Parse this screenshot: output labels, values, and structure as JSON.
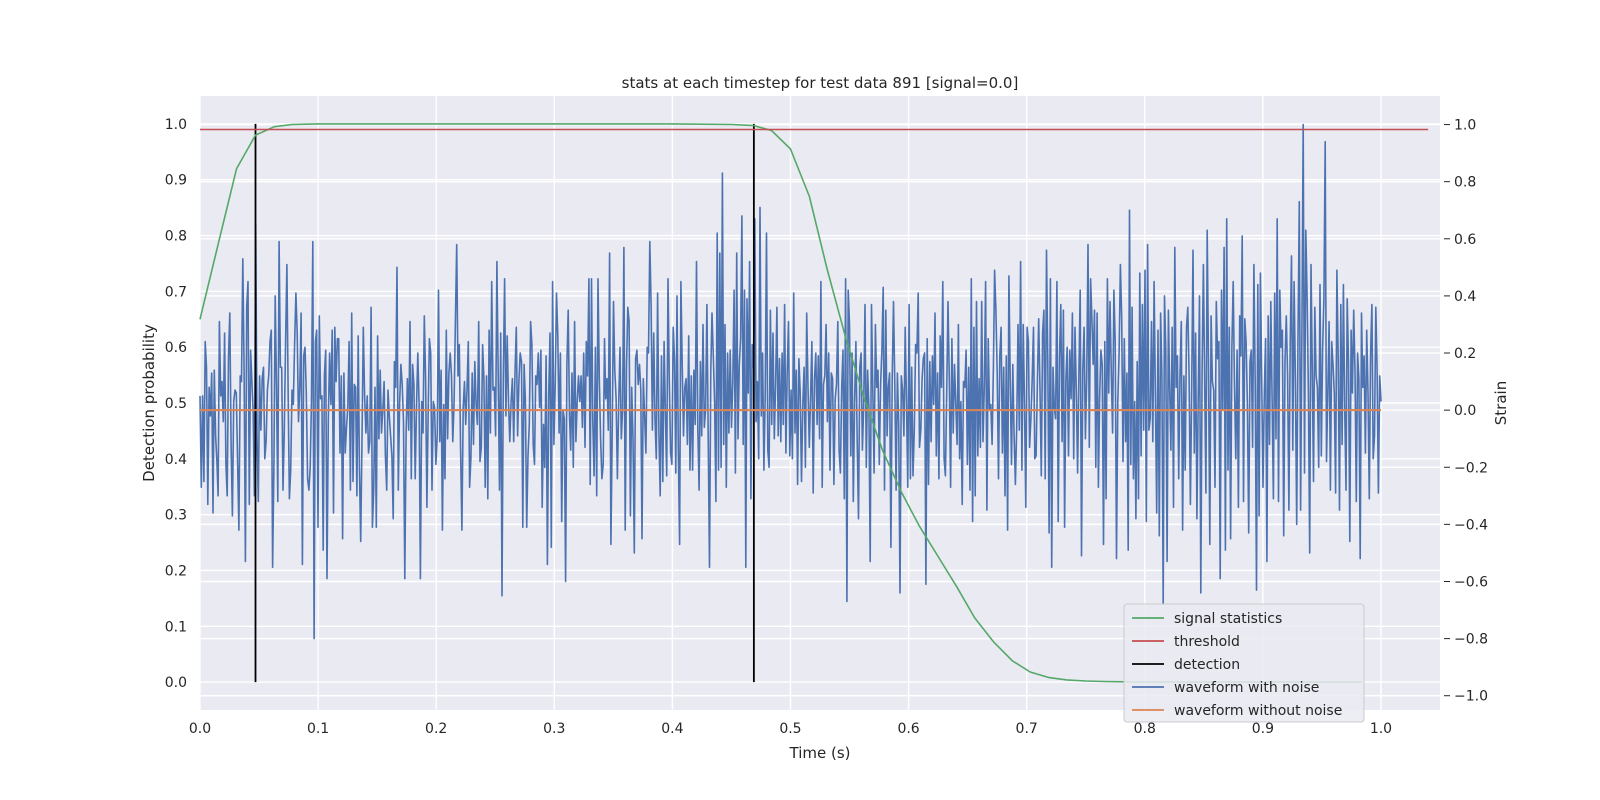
{
  "chart_data": {
    "type": "line",
    "title": "stats at each timestep for test data 891 [signal=0.0]",
    "xlabel": "Time (s)",
    "ylabel": "Detection probability",
    "ylabel_right": "Strain",
    "xlim": [
      0.0,
      1.05
    ],
    "ylim": [
      -0.05,
      1.05
    ],
    "ylim_right": [
      -1.05,
      1.1
    ],
    "x_ticks": [
      "0.0",
      "0.1",
      "0.2",
      "0.3",
      "0.4",
      "0.5",
      "0.6",
      "0.7",
      "0.8",
      "0.9",
      "1.0"
    ],
    "y_ticks": [
      "0.0",
      "0.1",
      "0.2",
      "0.3",
      "0.4",
      "0.5",
      "0.6",
      "0.7",
      "0.8",
      "0.9",
      "1.0"
    ],
    "y_right_ticks": [
      "−1.0",
      "−0.8",
      "−0.6",
      "−0.4",
      "−0.2",
      "0.0",
      "0.2",
      "0.4",
      "0.6",
      "0.8",
      "1.0"
    ],
    "grid": true,
    "legend_position": "lower-right",
    "series": [
      {
        "name": "signal statistics",
        "color": "#55a868",
        "axis": "left",
        "x": [
          0.0,
          0.016,
          0.031,
          0.047,
          0.063,
          0.078,
          0.1,
          0.2,
          0.3,
          0.4,
          0.45,
          0.469,
          0.484,
          0.5,
          0.516,
          0.531,
          0.547,
          0.563,
          0.578,
          0.594,
          0.609,
          0.625,
          0.641,
          0.656,
          0.672,
          0.688,
          0.703,
          0.719,
          0.734,
          0.75,
          0.766,
          0.8,
          0.85,
          0.9,
          0.95,
          0.984
        ],
        "y": [
          0.65,
          0.79,
          0.92,
          0.98,
          0.995,
          0.999,
          1.0,
          1.0,
          1.0,
          1.0,
          0.999,
          0.997,
          0.988,
          0.955,
          0.87,
          0.74,
          0.615,
          0.505,
          0.415,
          0.34,
          0.28,
          0.225,
          0.17,
          0.115,
          0.072,
          0.038,
          0.018,
          0.008,
          0.004,
          0.002,
          0.001,
          0.0,
          0.0,
          0.0,
          0.0,
          0.0
        ]
      },
      {
        "name": "threshold",
        "color": "#c44e52",
        "axis": "left",
        "x": [
          0.0,
          1.04
        ],
        "y": [
          0.99,
          0.99
        ]
      },
      {
        "name": "detection",
        "color": "#000000",
        "axis": "left",
        "segments": [
          {
            "x": 0.047,
            "y0": 0.0,
            "y1": 1.0
          },
          {
            "x": 0.469,
            "y0": 0.0,
            "y1": 1.0
          }
        ]
      },
      {
        "name": "waveform with noise",
        "color": "#4c72b0",
        "axis": "right",
        "x_start": 0.0,
        "x_end": 1.0,
        "y": [
          0.05,
          -0.27,
          0.05,
          -0.25,
          0.24,
          0.15,
          -0.33,
          0.08,
          -0.02,
          0.13,
          -0.36,
          0.14,
          -0.09,
          -0.18,
          -0.3,
          0.31,
          0.05,
          0.1,
          -0.04,
          0.27,
          -0.19,
          -0.3,
          0.19,
          0.34,
          -0.12,
          -0.37,
          0.03,
          0.07,
          0.06,
          -0.18,
          -0.42,
          0.12,
          0.1,
          0.53,
          0.14,
          -0.53,
          0.36,
          0.45,
          -0.33,
          0.21,
          0.1,
          0.0,
          -0.3,
          0.65,
          -0.09,
          -0.32,
          0.12,
          -0.07,
          0.11,
          0.15,
          -0.17,
          -0.11,
          0.07,
          0.12,
          0.24,
          0.28,
          -0.55,
          -0.2,
          0.4,
          0.08,
          -0.32,
          0.59,
          0.15,
          0.15,
          -0.28,
          -0.07,
          0.24,
          0.51,
          0.04,
          -0.31,
          -0.21,
          0.07,
          0.02,
          0.23,
          0.41,
          0.27,
          -0.04,
          0.08,
          0.34,
          -0.54,
          0.19,
          0.22,
          0.06,
          -0.24,
          -0.28,
          -0.2,
          0.04,
          0.59,
          -0.8,
          0.24,
          0.28,
          -0.41,
          0.33,
          0.04,
          0.05,
          -0.49,
          0.12,
          0.21,
          -0.59,
          -0.04,
          0.2,
          0.02,
          0.28,
          -0.36,
          0.29,
          0.1,
          0.25,
          0.25,
          -0.15,
          0.12,
          -0.45,
          0.13,
          -0.15,
          -0.06,
          0.01,
          0.24,
          -0.28,
          0.34,
          -0.25,
          0.09,
          0.08,
          -0.3,
          0.26,
          -0.2,
          -0.46,
          -0.1,
          0.29,
          0.05,
          -0.08,
          0.05,
          -0.15,
          -0.11,
          0.36,
          -0.41,
          -0.28,
          0.08,
          -0.41,
          0.26,
          -0.1,
          0.14,
          -0.08,
          0.0,
          0.1,
          -0.16,
          -0.28,
          0.07,
          -0.02,
          -0.09,
          -0.16,
          -0.38,
          0.17,
          0.08,
          0.5,
          -0.28,
          0.02,
          0.16,
          0.09,
          -0.04,
          -0.59,
          -0.08,
          0.11,
          -0.07,
          0.31,
          -0.24,
          0.16,
          0.09,
          -0.24,
          0.01,
          0.2,
          0.02,
          -0.59,
          0.03,
          -0.08,
          0.33,
          0.11,
          -0.34,
          0.0,
          0.25,
          0.2,
          -0.28,
          0.03,
          0.01,
          -0.19,
          -0.09,
          0.42,
          -0.11,
          0.14,
          -0.42,
          0.02,
          -0.24,
          0.28,
          -0.1,
          0.13,
          0.2,
          0.12,
          -0.11,
          0.03,
          0.31,
          0.58,
          0.12,
          0.23,
          -0.14,
          -0.42,
          0.01,
          0.1,
          -0.05,
          0.07,
          0.24,
          -0.27,
          -0.17,
          0.13,
          -0.12,
          0.17,
          0.02,
          -0.05,
          0.31,
          -0.18,
          -0.13,
          0.23,
          0.11,
          -0.27,
          0.12,
          -0.31,
          0.28,
          -0.08,
          0.45,
          0.07,
          0.08,
          -0.09,
          0.52,
          0.12,
          -0.28,
          0.27,
          -0.65,
          0.11,
          0.46,
          -0.02,
          0.26,
          0.03,
          -0.11,
          0.03,
          0.11,
          -0.11,
          0.13,
          0.29,
          -0.09,
          0.1,
          0.2,
          0.17,
          -0.41,
          0.16,
          0.03,
          -0.41,
          -0.16,
          -0.05,
          0.31,
          0.23,
          -0.12,
          -0.19,
          0.12,
          0.09,
          0.2,
          0.01,
          0.21,
          -0.34,
          -0.05,
          -0.2,
          0.19,
          -0.54,
          0.05,
          0.27,
          -0.48,
          0.45,
          -0.12,
          0.09,
          0.41,
          0.26,
          -0.08,
          0.2,
          -0.39,
          0.0,
          -0.03,
          -0.6,
          0.16,
          0.35,
          -0.02,
          -0.14,
          0.13,
          -0.2,
          0.31,
          -0.11,
          0.03,
          0.12,
          0.03,
          0.12,
          -0.06,
          0.2,
          -0.13,
          0.24,
          0.12,
          0.46,
          -0.26,
          0.46,
          -0.04,
          -0.23,
          0.22,
          -0.3,
          0.46,
          0.11,
          -0.1,
          -0.24,
          -0.19,
          0.25,
          0.04,
          0.11,
          -0.07,
          0.55,
          -0.47,
          -0.08,
          0.38,
          0.14,
          0.04,
          -0.24,
          0.02,
          0.22,
          -0.1,
          0.0,
          0.57,
          -0.42,
          0.15,
          0.36,
          0.31,
          -0.37,
          0.08,
          -0.1,
          -0.5,
          0.18,
          0.21,
          0.09,
          0.16,
          0.07,
          -0.45,
          0.11,
          -0.02,
          -0.15,
          0.22,
          0.2,
          0.59,
          0.37,
          -0.07,
          0.27,
          -0.03,
          -0.17,
          0.41,
          -0.08,
          -0.3,
          0.19,
          -0.25,
          0.24,
          -0.01,
          -0.23,
          0.46,
          0.1,
          -0.15,
          -0.19,
          0.29,
          0.18,
          -0.22,
          0.4,
          -0.13,
          -0.47,
          0.45,
          0.16,
          -0.09,
          0.08,
          0.11,
          -0.12,
          0.26,
          -0.21,
          0.12,
          -0.21,
          0.14,
          -0.05,
          0.52,
          -0.06,
          -0.28,
          0.17,
          -0.09,
          0.3,
          -0.06,
          0.0,
          0.37,
          -0.09,
          -0.55,
          0.14,
          0.34,
          0.19,
          0.03,
          -0.32,
          0.62,
          -0.21,
          0.55,
          -0.2,
          0.83,
          -0.12,
          0.3,
          -0.27,
          0.2,
          -0.08,
          0.21,
          -0.06,
          0.1,
          0.42,
          -0.22,
          0.55,
          -0.1,
          0.16,
          0.25,
          0.68,
          -0.12,
          0.42,
          -0.55,
          0.39,
          0.06,
          0.52,
          -0.31,
          0.23,
          0.15,
          0.67,
          -0.04,
          0.1,
          -0.17,
          0.71,
          -0.02,
          0.2,
          -0.21,
          0.05,
          0.62,
          -0.14,
          -0.2,
          0.35,
          -0.05,
          0.27,
          -0.1,
          0.09,
          0.36,
          -0.09,
          0.18,
          -0.11,
          0.2,
          -0.05,
          0.37,
          -0.15,
          0.13,
          0.31,
          -0.16,
          0.07,
          -0.17,
          0.41,
          -0.08,
          0.14,
          -0.26,
          0.18,
          0.06,
          -0.25,
          0.02,
          0.15,
          -0.2,
          0.34,
          0.08,
          -0.13,
          0.05,
          0.24,
          -0.29,
          0.11,
          0.2,
          -0.05,
          0.19,
          -0.1,
          0.45,
          -0.27,
          0.09,
          0.12,
          0.3,
          -0.04,
          0.2,
          -0.21,
          0.13,
          0.11,
          -0.26,
          0.04,
          0.09,
          0.31,
          -0.14,
          -0.22,
          0.08,
          0.21,
          -0.31,
          0.46,
          -0.67,
          0.42,
          0.3,
          -0.16,
          0.2,
          -0.32,
          0.03,
          0.24,
          -0.11,
          -0.38,
          0.15,
          0.2,
          -0.14,
          0.02,
          0.37,
          -0.2,
          0.14,
          0.01,
          -0.53,
          0.37,
          0.07,
          -0.22,
          0.3,
          0.08,
          0.14,
          -0.19,
          0.09,
          0.21,
          0.43,
          -0.28,
          0.35,
          -0.09,
          0.08,
          0.13,
          -0.48,
          0.11,
          0.38,
          0.09,
          -0.28,
          0.13,
          -0.05,
          -0.64,
          0.12,
          0.07,
          -0.09,
          0.29,
          0.02,
          -0.27,
          0.37,
          -0.24,
          0.15,
          -0.23,
          -0.07,
          0.23,
          0.2,
          0.41,
          -0.13,
          -0.07,
          0.11,
          0.18,
          0.2,
          -0.61,
          0.25,
          -0.26,
          0.17,
          -0.11,
          0.19,
          0.02,
          0.34,
          -0.16,
          0.13,
          -0.24,
          0.26,
          0.08,
          0.45,
          -0.17,
          -0.23,
          0.06,
          0.38,
          0.11,
          -0.27,
          0.25,
          -0.08,
          0.16,
          0.02,
          -0.12,
          0.3,
          -0.17,
          0.03,
          -0.33,
          0.1,
          0.08,
          0.21,
          -0.19,
          0.15,
          -0.28,
          0.46,
          -0.39,
          0.29,
          -0.3,
          0.38,
          -0.16,
          0.11,
          -0.13,
          0.38,
          -0.11,
          0.08,
          0.45,
          -0.35,
          0.25,
          0.0,
          0.02,
          -0.12,
          0.15,
          0.49,
          0.35,
          0.13,
          -0.24,
          0.19,
          0.29,
          -0.15,
          0.15,
          -0.3,
          0.19,
          -0.42,
          0.47,
          0.11,
          -0.19,
          0.16,
          -0.09,
          -0.26,
          -0.06,
          0.3,
          -0.07,
          0.52,
          -0.21,
          0.3,
          0.02,
          -0.34,
          0.29,
          0.24,
          -0.13,
          -0.03,
          0.11,
          0.29,
          -0.17,
          -0.16,
          0.1,
          0.32,
          0.07,
          -0.23,
          0.27,
          0.35,
          -0.24,
          0.56,
          0.17,
          -0.43,
          0.46,
          -0.55,
          0.15,
          0.01,
          -0.03,
          0.45,
          -0.39,
          0.19,
          0.37,
          -0.11,
          0.35,
          -0.41,
          0.11,
          0.22,
          -0.16,
          0.21,
          0.04,
          0.34,
          -0.17,
          0.29,
          0.07,
          -0.22,
          0.13,
          0.42,
          -0.51,
          0.14,
          0.29,
          -0.1,
          0.11,
          0.58,
          -0.13,
          0.46,
          0.32,
          0.16,
          0.35,
          -0.2,
          0.34,
          -0.27,
          0.04,
          0.21,
          0.16,
          -0.47,
          0.24,
          -0.31,
          0.46,
          0.06,
          0.38,
          0.13,
          -0.08,
          0.42,
          0.24,
          -0.52,
          0.03,
          0.2,
          0.51,
          0.32,
          -0.18,
          0.25,
          -0.11,
          0.13,
          -0.49,
          0.7,
          -0.19,
          0.36,
          -0.24,
          0.03,
          -0.38,
          0.17,
          -0.31,
          0.48,
          -0.16,
          0.37,
          -0.07,
          0.49,
          -0.39,
          0.58,
          -0.07,
          -0.03,
          0.31,
          -0.11,
          0.45,
          0.05,
          -0.36,
          0.28,
          -0.44,
          0.34,
          0.12,
          -0.68,
          0.4,
          0.21,
          -0.53,
          0.35,
          0.07,
          -0.14,
          0.29,
          -0.34,
          0.57,
          0.08,
          0.19,
          -0.24,
          0.13,
          0.31,
          -0.42,
          0.12,
          -0.21,
          0.29,
          0.36,
          0.12,
          -0.33,
          0.08,
          0.56,
          -0.15,
          0.27,
          -0.38,
          0.03,
          0.4,
          -0.64,
          0.14,
          0.51,
          0.09,
          -0.29,
          0.63,
          0.16,
          -0.47,
          0.33,
          0.1,
          0.07,
          -0.27,
          0.38,
          0.18,
          0.24,
          -0.59,
          0.42,
          0.0,
          0.57,
          -0.49,
          0.67,
          -0.21,
          0.29,
          -0.45,
          0.22,
          0.45,
          0.08,
          -0.17,
          0.21,
          -0.34,
          0.33,
          0.19,
          0.61,
          -0.32,
          0.32,
          0.24,
          0.02,
          -0.43,
          0.17,
          0.21,
          -0.13,
          0.51,
          0.1,
          -0.63,
          0.44,
          -0.37,
          0.48,
          0.11,
          -0.27,
          0.06,
          0.25,
          -0.53,
          0.33,
          -0.12,
          0.38,
          0.04,
          -0.31,
          0.41,
          -0.1,
          0.67,
          -0.32,
          0.42,
          0.22,
          0.28,
          -0.44,
          0.17,
          0.33,
          0.12,
          -0.35,
          0.23,
          0.54,
          -0.14,
          0.45,
          0.1,
          -0.4,
          0.26,
          0.73,
          -0.35,
          0.27,
          1.0,
          -0.22,
          0.63,
          0.4,
          0.06,
          -0.5,
          0.51,
          0.17,
          -0.25,
          0.36,
          0.12,
          0.08,
          -0.2,
          0.44,
          -0.16,
          0.21,
          0.39,
          0.94,
          -0.18,
          0.06,
          0.31,
          -0.28,
          0.24,
          0.16,
          0.06,
          -0.29,
          0.49,
          0.18,
          -0.35,
          0.37,
          -0.12,
          0.44,
          0.01,
          -0.28,
          0.39,
          0.17,
          -0.46,
          0.28,
          0.06,
          0.35,
          0.14,
          -0.32,
          0.2,
          0.11,
          -0.52,
          0.34,
          0.08,
          0.19,
          -0.15,
          0.28,
          0.06,
          -0.31,
          0.2,
          0.37,
          -0.17,
          -0.09,
          0.36,
          0.14,
          -0.29,
          0.12,
          0.03
        ]
      },
      {
        "name": "waveform without noise",
        "color": "#dd8452",
        "axis": "right",
        "x": [
          0.0,
          1.0
        ],
        "y": [
          0.0,
          0.0
        ]
      }
    ]
  }
}
